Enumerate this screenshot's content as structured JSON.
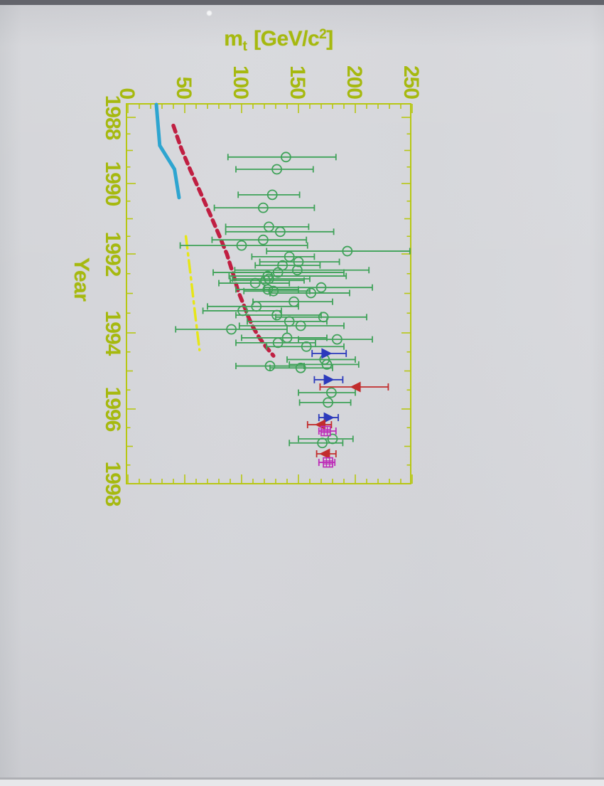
{
  "page": {
    "axis_y_label": "Year",
    "title_parts": {
      "prefix": "m",
      "sub": "t",
      "mid": " [GeV/c",
      "sup": "2",
      "suffix": "]"
    }
  },
  "colors": {
    "frame": "#b7c713",
    "labels": "#a6b90f",
    "ew_green": "#3fa259",
    "cdf_blue": "#2c3abc",
    "d0_red": "#c22d2d",
    "world_avg_magenta": "#bd2cb8",
    "ee_limit_cyan": "#2ea5d0",
    "hadron_limit_crimson": "#c01f42",
    "limit_yellow": "#e6e618"
  },
  "chart_data": {
    "type": "scatter",
    "title": "mt [GeV/c2]",
    "xlabel": "mt [GeV/c2]",
    "ylabel": "Year",
    "axes": {
      "mass": {
        "min": 0,
        "max": 250,
        "minor_step": 10,
        "major_step": 50,
        "tick_labels": [
          "0",
          "50",
          "100",
          "150",
          "200",
          "250"
        ],
        "tick_values": [
          0,
          50,
          100,
          150,
          200,
          250
        ]
      },
      "year": {
        "min": 1988,
        "max": 1998,
        "minor_step": 0.5,
        "tick_labels": [
          "1988",
          "1990",
          "1992",
          "1994",
          "1996",
          "1998"
        ],
        "tick_values": [
          1988,
          1990,
          1992,
          1994,
          1996,
          1998
        ]
      }
    },
    "series": [
      {
        "name": "indirect-electroweak-fits",
        "marker": "open-circle",
        "color": "#3fa259",
        "points": [
          {
            "year": 1989.2,
            "mass": 139,
            "lo": 88,
            "hi": 183
          },
          {
            "year": 1989.57,
            "mass": 131,
            "lo": 95,
            "hi": 163
          },
          {
            "year": 1990.32,
            "mass": 127,
            "lo": 97,
            "hi": 151
          },
          {
            "year": 1990.69,
            "mass": 119,
            "lo": 76,
            "hi": 164
          },
          {
            "year": 1991.23,
            "mass": 124,
            "lo": 86,
            "hi": 159
          },
          {
            "year": 1991.37,
            "mass": 134,
            "lo": 86,
            "hi": 181
          },
          {
            "year": 1991.6,
            "mass": 119,
            "lo": 74,
            "hi": 157
          },
          {
            "year": 1991.76,
            "mass": 100,
            "lo": 46,
            "hi": 158
          },
          {
            "year": 1991.92,
            "mass": 193,
            "lo": 122,
            "hi": 248
          },
          {
            "year": 1992.07,
            "mass": 142,
            "lo": 109,
            "hi": 164
          },
          {
            "year": 1992.2,
            "mass": 150,
            "lo": 116,
            "hi": 186
          },
          {
            "year": 1992.29,
            "mass": 136,
            "lo": 112,
            "hi": 169
          },
          {
            "year": 1992.41,
            "mass": 149,
            "lo": 94,
            "hi": 212
          },
          {
            "year": 1992.47,
            "mass": 132,
            "lo": 75,
            "hi": 190
          },
          {
            "year": 1992.56,
            "mass": 123,
            "lo": 89,
            "hi": 192
          },
          {
            "year": 1992.63,
            "mass": 124,
            "lo": 92,
            "hi": 160
          },
          {
            "year": 1992.67,
            "mass": 121,
            "lo": 90,
            "hi": 155
          },
          {
            "year": 1992.74,
            "mass": 112,
            "lo": 80,
            "hi": 142
          },
          {
            "year": 1992.85,
            "mass": 170,
            "lo": 120,
            "hi": 215
          },
          {
            "year": 1992.9,
            "mass": 123,
            "lo": 95,
            "hi": 150
          },
          {
            "year": 1992.94,
            "mass": 128,
            "lo": 102,
            "hi": 160
          },
          {
            "year": 1992.99,
            "mass": 161,
            "lo": 125,
            "hi": 195
          },
          {
            "year": 1993.21,
            "mass": 146,
            "lo": 110,
            "hi": 180
          },
          {
            "year": 1993.33,
            "mass": 113,
            "lo": 70,
            "hi": 150
          },
          {
            "year": 1993.44,
            "mass": 101,
            "lo": 66,
            "hi": 135
          },
          {
            "year": 1993.55,
            "mass": 131,
            "lo": 95,
            "hi": 170
          },
          {
            "year": 1993.6,
            "mass": 172,
            "lo": 130,
            "hi": 210
          },
          {
            "year": 1993.71,
            "mass": 142,
            "lo": 105,
            "hi": 175
          },
          {
            "year": 1993.82,
            "mass": 152,
            "lo": 98,
            "hi": 190
          },
          {
            "year": 1993.91,
            "mass": 91,
            "lo": 42,
            "hi": 140
          },
          {
            "year": 1994.13,
            "mass": 140,
            "lo": 100,
            "hi": 175
          },
          {
            "year": 1994.17,
            "mass": 184,
            "lo": 150,
            "hi": 215
          },
          {
            "year": 1994.26,
            "mass": 132,
            "lo": 95,
            "hi": 165
          },
          {
            "year": 1994.36,
            "mass": 157,
            "lo": 122,
            "hi": 190
          },
          {
            "year": 1994.7,
            "mass": 173,
            "lo": 140,
            "hi": 200
          },
          {
            "year": 1994.83,
            "mass": 175,
            "lo": 142,
            "hi": 203
          },
          {
            "year": 1994.87,
            "mass": 125,
            "lo": 95,
            "hi": 155
          },
          {
            "year": 1994.92,
            "mass": 152,
            "lo": 125,
            "hi": 180
          },
          {
            "year": 1995.57,
            "mass": 179,
            "lo": 150,
            "hi": 200
          },
          {
            "year": 1995.83,
            "mass": 176,
            "lo": 151,
            "hi": 196
          },
          {
            "year": 1996.8,
            "mass": 180,
            "lo": 150,
            "hi": 198
          },
          {
            "year": 1996.91,
            "mass": 171,
            "lo": 142,
            "hi": 189
          }
        ]
      },
      {
        "name": "cdf-direct-measurement",
        "marker": "triangle-right",
        "color": "#2c3abc",
        "points": [
          {
            "year": 1994.54,
            "mass": 174,
            "lo": 162,
            "hi": 192
          },
          {
            "year": 1995.23,
            "mass": 176,
            "lo": 164,
            "hi": 189
          },
          {
            "year": 1996.23,
            "mass": 176,
            "lo": 168,
            "hi": 185
          }
        ]
      },
      {
        "name": "d0-direct-measurement",
        "marker": "triangle-left",
        "color": "#c22d2d",
        "points": [
          {
            "year": 1995.42,
            "mass": 201,
            "lo": 169,
            "hi": 229
          },
          {
            "year": 1996.42,
            "mass": 170,
            "lo": 158,
            "hi": 179
          },
          {
            "year": 1997.2,
            "mass": 174,
            "lo": 166,
            "hi": 183
          }
        ]
      },
      {
        "name": "world-average",
        "marker": "hatched-square",
        "color": "#bd2cb8",
        "points": [
          {
            "year": 1996.59,
            "mass": 174,
            "lo": 168,
            "hi": 183
          },
          {
            "year": 1997.43,
            "mass": 176,
            "lo": 168,
            "hi": 182
          }
        ]
      }
    ],
    "limit_lines": [
      {
        "name": "ee-collider-lower-bound",
        "style": "solid",
        "color": "#2ea5d0",
        "points": [
          [
            25,
            1987.62
          ],
          [
            28,
            1988.85
          ],
          [
            41,
            1989.57
          ],
          [
            45,
            1990.4
          ]
        ]
      },
      {
        "name": "hadron-collider-lower-bound",
        "style": "dashed",
        "color": "#c01f42",
        "points": [
          [
            40,
            1988.25
          ],
          [
            47,
            1988.95
          ],
          [
            55,
            1989.6
          ],
          [
            63,
            1990.2
          ],
          [
            72,
            1990.85
          ],
          [
            80,
            1991.45
          ],
          [
            87,
            1992.0
          ],
          [
            93,
            1992.55
          ],
          [
            97,
            1992.95
          ],
          [
            102,
            1993.3
          ],
          [
            106,
            1993.6
          ],
          [
            110,
            1993.85
          ],
          [
            115,
            1994.1
          ],
          [
            121,
            1994.35
          ],
          [
            128,
            1994.6
          ]
        ]
      },
      {
        "name": "dashdot-lower-bound",
        "style": "dashdot",
        "color": "#e6e618",
        "points": [
          [
            51,
            1991.5
          ],
          [
            55,
            1992.5
          ],
          [
            59,
            1993.5
          ],
          [
            63,
            1994.45
          ]
        ]
      }
    ]
  }
}
